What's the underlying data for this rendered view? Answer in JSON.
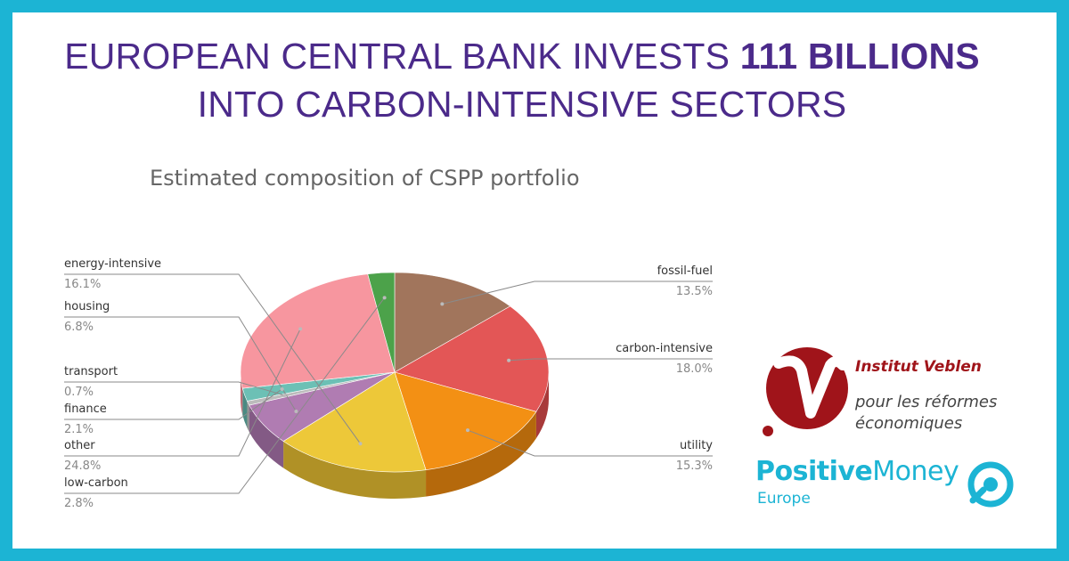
{
  "headline": {
    "line1_pre": "EUROPEAN CENTRAL BANK INVESTS ",
    "line1_bold": "111 BILLIONS",
    "line2": "INTO CARBON-INTENSIVE SECTORS"
  },
  "chart_data": {
    "type": "pie",
    "title": "Estimated composition of CSPP portfolio",
    "legend": "labels-around",
    "slices": [
      {
        "label": "fossil-fuel",
        "value": 13.5,
        "display": "13.5%",
        "color": "#a1755c",
        "side_color": "#7a5644"
      },
      {
        "label": "carbon-intensive",
        "value": 18.0,
        "display": "18.0%",
        "color": "#e35656",
        "side_color": "#a83a3a"
      },
      {
        "label": "utility",
        "value": 15.3,
        "display": "15.3%",
        "color": "#f39014",
        "side_color": "#b5690c"
      },
      {
        "label": "energy-intensive",
        "value": 16.1,
        "display": "16.1%",
        "color": "#edc839",
        "side_color": "#b09126"
      },
      {
        "label": "housing",
        "value": 6.8,
        "display": "6.8%",
        "color": "#b07cb2",
        "side_color": "#835a85"
      },
      {
        "label": "transport",
        "value": 0.7,
        "display": "0.7%",
        "color": "#bcbcbc",
        "side_color": "#8e8e8e"
      },
      {
        "label": "finance",
        "value": 2.1,
        "display": "2.1%",
        "color": "#6cc0b5",
        "side_color": "#4b8a82"
      },
      {
        "label": "other",
        "value": 24.8,
        "display": "24.8%",
        "color": "#f7969f",
        "side_color": "#c06e76"
      },
      {
        "label": "low-carbon",
        "value": 2.8,
        "display": "2.8%",
        "color": "#4ca24a",
        "side_color": "#367534"
      }
    ]
  },
  "logos": {
    "veblen_name": "Institut Veblen",
    "veblen_line1": "pour les réformes",
    "veblen_line2": "économiques",
    "pm_positive": "Positive",
    "pm_money": "Money",
    "pm_sub": "Europe"
  },
  "colors": {
    "frame": "#1cb4d4",
    "headline": "#4b2a8a",
    "veblen_red": "#a0141a"
  }
}
